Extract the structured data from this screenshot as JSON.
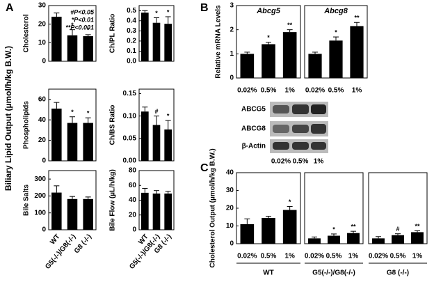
{
  "figure": {
    "panel_labels": [
      "A",
      "B",
      "C"
    ],
    "a_ylabel": "Biliary Lipid Output (µmol/h/kg B.W.)",
    "blot": {
      "rows": [
        "ABCG5",
        "ABCG8",
        "β-Actin"
      ],
      "lanes": [
        "0.02%",
        "0.5%",
        "1%"
      ]
    }
  },
  "chart_data": [
    {
      "type": "bar",
      "ylabel": "Cholesterol",
      "ylim": [
        0,
        30
      ],
      "yticks": [
        0,
        10,
        20,
        30
      ],
      "values": [
        24,
        14,
        13.5
      ],
      "errors": [
        2,
        3,
        0.8
      ],
      "significance": [
        null,
        "*",
        "*"
      ],
      "legend": [
        "#P<0.05",
        "*P<0.01",
        "**P<0.001"
      ],
      "color": "#000000"
    },
    {
      "type": "bar",
      "ylabel": "Ch/PL Ratio",
      "ylim": [
        0,
        0.55
      ],
      "yticks": [
        {
          "value": 0,
          "label": "0.0"
        },
        0.1,
        0.2,
        0.3,
        0.4,
        0.5
      ],
      "values": [
        0.48,
        0.38,
        0.37
      ],
      "errors": [
        0.02,
        0.05,
        0.07
      ],
      "significance": [
        null,
        "*",
        "*"
      ],
      "color": "#000000"
    },
    {
      "type": "bar",
      "ylabel": "Phospholipids",
      "ylim": [
        0,
        70
      ],
      "yticks": [
        0,
        20,
        40,
        60
      ],
      "values": [
        51,
        37,
        37
      ],
      "errors": [
        6,
        6,
        5
      ],
      "significance": [
        null,
        "*",
        "*"
      ],
      "color": "#000000"
    },
    {
      "type": "bar",
      "ylabel": "Ch/BS Ratio",
      "ylim": [
        0,
        0.16
      ],
      "yticks": [
        {
          "value": 0,
          "label": "0.00"
        },
        0.05,
        {
          "value": 0.1,
          "label": "0.10"
        },
        0.15
      ],
      "values": [
        0.11,
        0.08,
        0.07
      ],
      "errors": [
        0.01,
        0.02,
        0.02
      ],
      "significance": [
        null,
        "#",
        "*"
      ],
      "color": "#000000"
    },
    {
      "type": "bar",
      "ylabel": "Bile Salts",
      "ylim": [
        0,
        350
      ],
      "yticks": [
        0,
        100,
        200,
        300
      ],
      "categories": [
        "WT",
        "G5(-/-)/G8(-/-)",
        "G8 (-/-)"
      ],
      "values": [
        220,
        182,
        182
      ],
      "errors": [
        40,
        15,
        12
      ],
      "significance": [
        null,
        null,
        null
      ],
      "color": "#000000"
    },
    {
      "type": "bar",
      "ylabel": "Bile Flow (µL/h/kg)",
      "ylim": [
        0,
        80
      ],
      "yticks": [
        0,
        20,
        40,
        60,
        80
      ],
      "categories": [
        "WT",
        "G5(-/-)/G8(-/-)",
        "G8 (-/-)"
      ],
      "values": [
        50,
        49,
        49
      ],
      "errors": [
        6,
        4,
        3
      ],
      "significance": [
        null,
        null,
        null
      ],
      "color": "#000000"
    },
    {
      "type": "bar",
      "title": "Abcg5",
      "ylabel": "Relative mRNA Levels",
      "ylim": [
        0,
        3
      ],
      "yticks": [
        0,
        1,
        2,
        3
      ],
      "categories": [
        "0.02%",
        "0.5%",
        "1%"
      ],
      "values": [
        1.0,
        1.4,
        1.9
      ],
      "errors": [
        0.07,
        0.08,
        0.1
      ],
      "significance": [
        null,
        "*",
        "**"
      ],
      "color": "#000000"
    },
    {
      "type": "bar",
      "title": "Abcg8",
      "ylim": [
        0,
        3
      ],
      "categories": [
        "0.02%",
        "0.5%",
        "1%"
      ],
      "values": [
        1.0,
        1.55,
        2.15
      ],
      "errors": [
        0.07,
        0.15,
        0.15
      ],
      "significance": [
        null,
        "*",
        "**"
      ],
      "color": "#000000"
    },
    {
      "type": "bar",
      "ylabel": "Cholesterol Output (µmol/h/kg B.W.)",
      "xlabel": "WT",
      "ylim": [
        0,
        40
      ],
      "yticks": [
        0,
        10,
        20,
        30,
        40
      ],
      "categories": [
        "0.02%",
        "0.5%",
        "1%"
      ],
      "values": [
        11,
        14.5,
        19
      ],
      "errors": [
        3,
        1,
        2
      ],
      "significance": [
        null,
        null,
        "*"
      ],
      "color": "#000000"
    },
    {
      "type": "bar",
      "xlabel": "G5(-/-)/G8(-/-)",
      "ylim": [
        0,
        40
      ],
      "categories": [
        "0.02%",
        "0.5%",
        "1%"
      ],
      "values": [
        3,
        4.5,
        6
      ],
      "errors": [
        0.8,
        1,
        1
      ],
      "significance": [
        null,
        "*",
        "**"
      ],
      "color": "#000000"
    },
    {
      "type": "bar",
      "xlabel": "G8 (-/-)",
      "ylim": [
        0,
        40
      ],
      "categories": [
        "0.02%",
        "0.5%",
        "1%"
      ],
      "values": [
        3,
        4.8,
        6.5
      ],
      "errors": [
        1,
        0.8,
        0.8
      ],
      "significance": [
        null,
        "#",
        "**"
      ],
      "color": "#000000"
    }
  ]
}
